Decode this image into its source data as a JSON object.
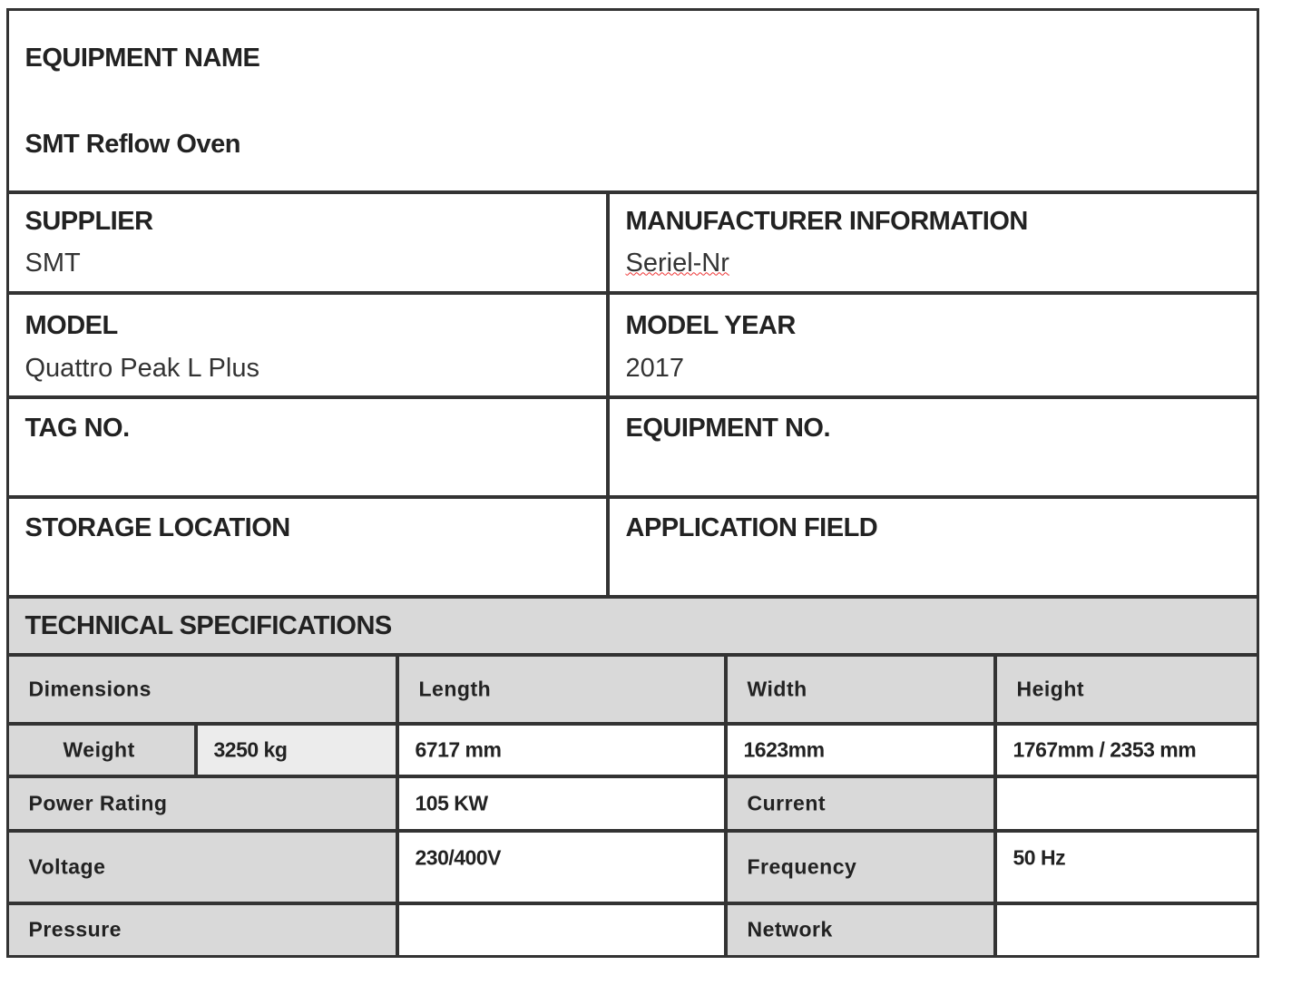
{
  "equipment_name": {
    "label": "EQUIPMENT NAME",
    "value": "SMT Reflow Oven"
  },
  "supplier": {
    "label": "SUPPLIER",
    "value": "SMT"
  },
  "manufacturer": {
    "label": "MANUFACTURER INFORMATION",
    "value": "Seriel-Nr"
  },
  "model": {
    "label": "MODEL",
    "value": "Quattro Peak L Plus"
  },
  "model_year": {
    "label": "MODEL YEAR",
    "value": "2017"
  },
  "tag_no": {
    "label": "TAG NO.",
    "value": ""
  },
  "equipment_no": {
    "label": "EQUIPMENT NO.",
    "value": ""
  },
  "storage_location": {
    "label": "STORAGE LOCATION",
    "value": ""
  },
  "application_field": {
    "label": "APPLICATION FIELD",
    "value": ""
  },
  "specs": {
    "title": "TECHNICAL SPECIFICATIONS",
    "dimensions": "Dimensions",
    "length_label": "Length",
    "width_label": "Width",
    "height_label": "Height",
    "weight_label": "Weight",
    "weight": "3250 kg",
    "length": "6717 mm",
    "width": "1623mm",
    "height": "1767mm / 2353 mm",
    "power_label": "Power Rating",
    "power": "105 KW",
    "current_label": "Current",
    "current": "",
    "voltage_label": "Voltage",
    "voltage": "230/400V",
    "frequency_label": "Frequency",
    "frequency": "50 Hz",
    "pressure_label": "Pressure",
    "pressure": "",
    "network_label": "Network",
    "network": ""
  }
}
